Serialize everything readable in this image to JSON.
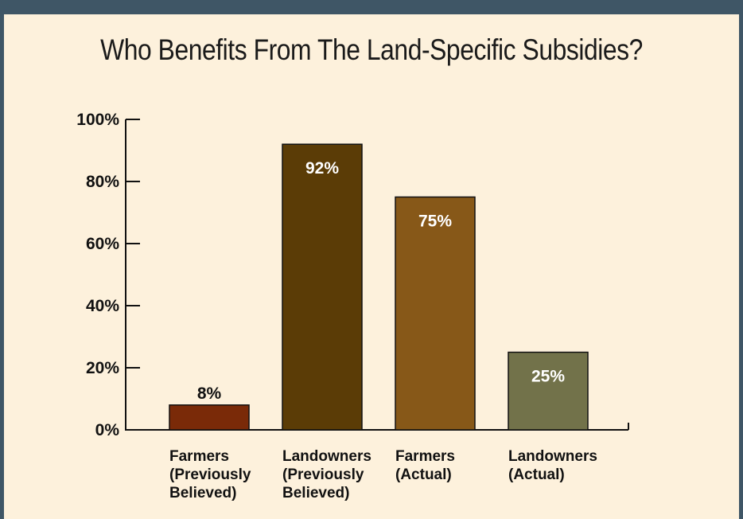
{
  "chart_data": {
    "type": "bar",
    "title": "Who Benefits From The Land-Specific Subsidies?",
    "xlabel": "",
    "ylabel": "",
    "ylim": [
      0,
      100
    ],
    "yticks": [
      "0%",
      "20%",
      "40%",
      "60%",
      "80%",
      "100%"
    ],
    "grid": false,
    "categories": [
      [
        "Farmers",
        "(Previously",
        "Believed)"
      ],
      [
        "Landowners",
        "(Previously",
        "Believed)"
      ],
      [
        "Farmers",
        "(Actual)"
      ],
      [
        "Landowners",
        "(Actual)"
      ]
    ],
    "values": [
      8,
      92,
      75,
      25
    ],
    "data_labels": [
      "8%",
      "92%",
      "75%",
      "25%"
    ],
    "colors": [
      "#7a2a08",
      "#5b3c06",
      "#875818",
      "#72724a"
    ],
    "label_colors": [
      "#111111",
      "#ffffff",
      "#ffffff",
      "#ffffff"
    ]
  }
}
